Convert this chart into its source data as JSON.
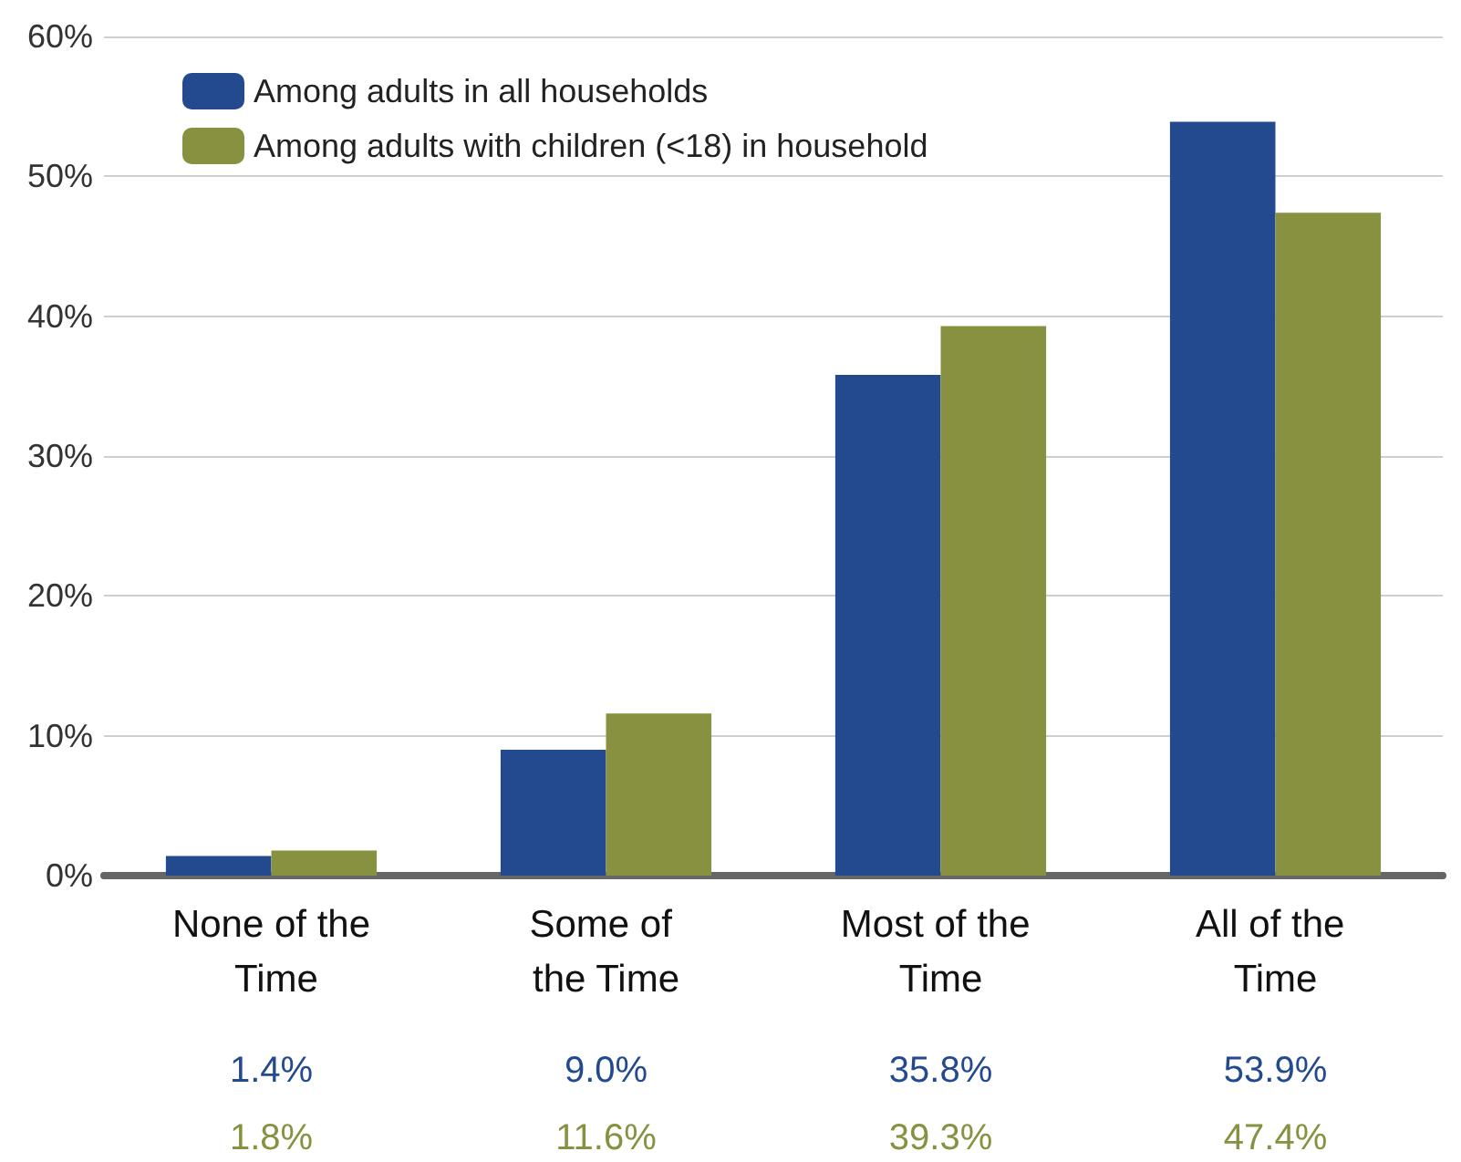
{
  "chart_data": {
    "type": "bar",
    "categories": [
      "None of the Time",
      "Some of the Time",
      "Most of the Time",
      "All of the Time"
    ],
    "series": [
      {
        "name": "Among adults in all households",
        "color": "#234a8f",
        "values": [
          1.4,
          9.0,
          35.8,
          53.9
        ],
        "value_labels": [
          "1.4%",
          "9.0%",
          "35.8%",
          "53.9%"
        ]
      },
      {
        "name": "Among adults with children (<18) in household",
        "color": "#879140",
        "values": [
          1.8,
          11.6,
          39.3,
          47.4
        ],
        "value_labels": [
          "1.8%",
          "11.6%",
          "39.3%",
          "47.4%"
        ]
      }
    ],
    "ylim": [
      0,
      60
    ],
    "yticks": [
      {
        "value": 0,
        "label": "0%"
      },
      {
        "value": 10,
        "label": "10%"
      },
      {
        "value": 20,
        "label": "20%"
      },
      {
        "value": 30,
        "label": "30%"
      },
      {
        "value": 40,
        "label": "40%"
      },
      {
        "value": 50,
        "label": "50%"
      },
      {
        "value": 60,
        "label": "60%"
      }
    ],
    "grid": "y",
    "legend": "top left"
  }
}
